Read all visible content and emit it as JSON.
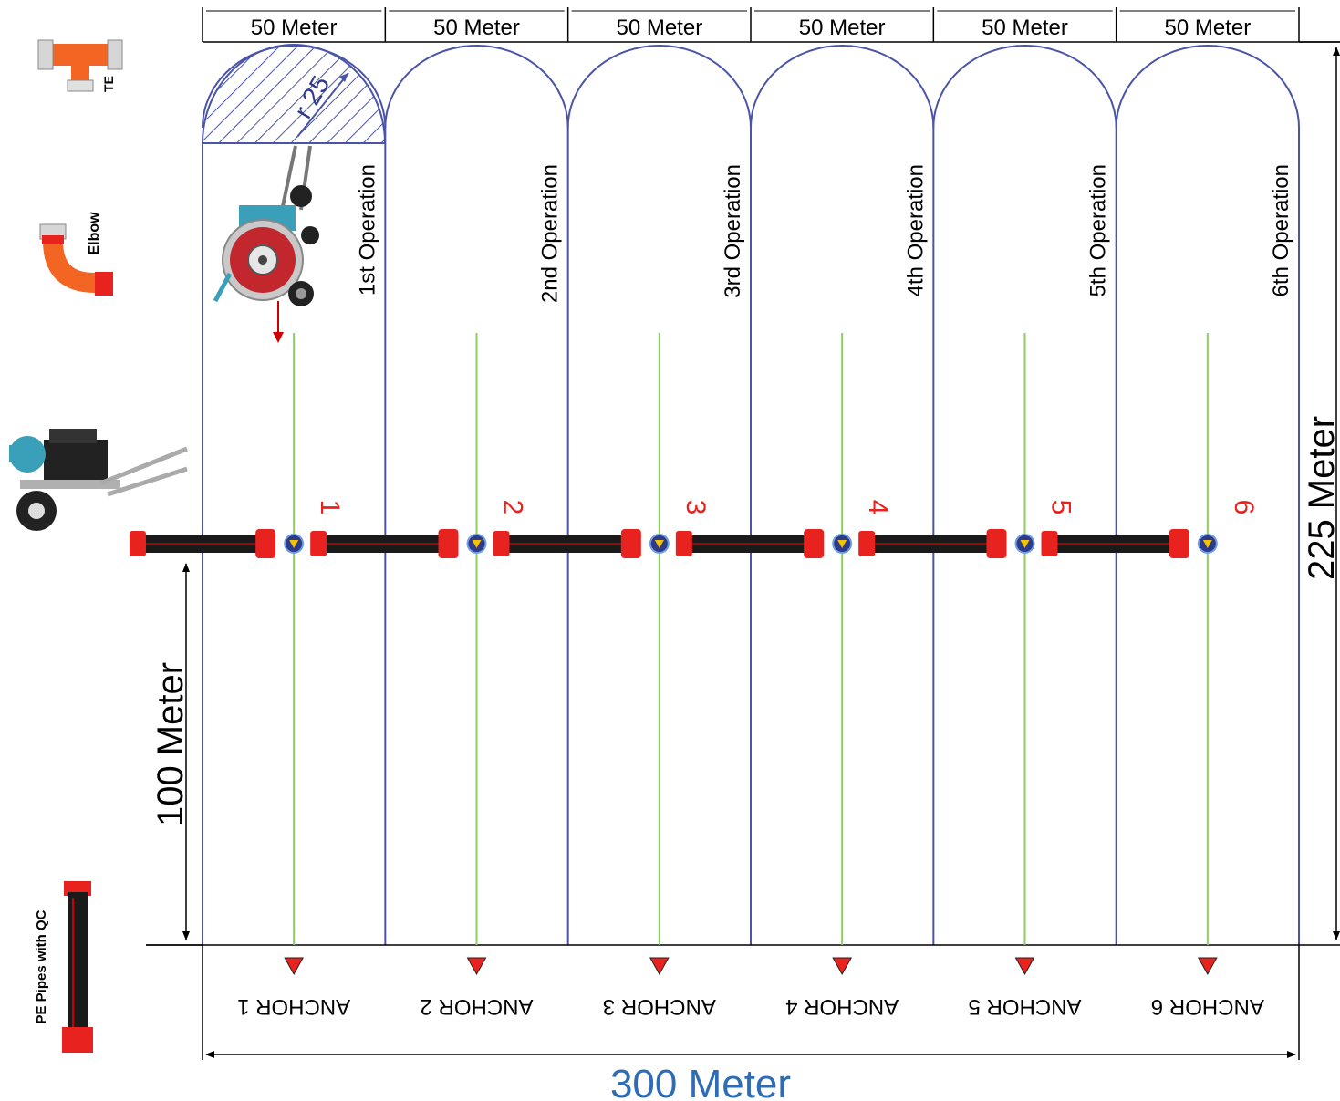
{
  "segment_labels": [
    "50 Meter",
    "50 Meter",
    "50 Meter",
    "50 Meter",
    "50 Meter",
    "50 Meter"
  ],
  "operations": [
    "1st Operation",
    "2nd Operation",
    "3rd Operation",
    "4th Operation",
    "5th Operation",
    "6th Operation"
  ],
  "anchor_numbers": [
    "1",
    "2",
    "3",
    "4",
    "5",
    "6"
  ],
  "anchors": [
    "ANCHOR 1",
    "ANCHOR 2",
    "ANCHOR 3",
    "ANCHOR 4",
    "ANCHOR 5",
    "ANCHOR 6"
  ],
  "radius_label": "r 25",
  "total_width_label": "300 Meter",
  "total_height_label": "225 Meter",
  "travel_label": "100 Meter",
  "legend": {
    "te": "TE",
    "elbow": "Elbow",
    "pe_pipes": "PE Pipes with QC"
  },
  "colors": {
    "field_line": "#4a54a8",
    "center_line": "#8ccf5a",
    "pipe_fitting": "#e8221f",
    "pipe_body": "#1a1a1a",
    "total_label": "#2e6db4",
    "anchor_number": "#e8221f",
    "fitting_orange": "#f26522"
  }
}
